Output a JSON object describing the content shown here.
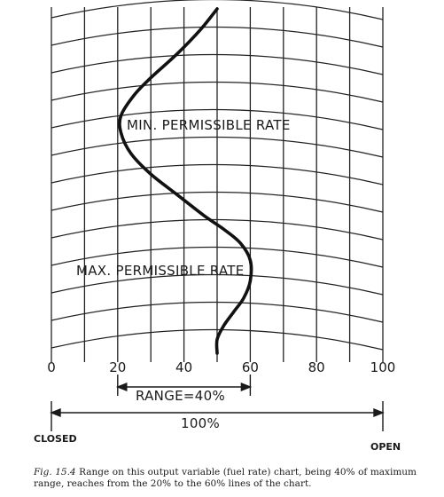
{
  "chart_data": {
    "type": "line",
    "xlim": [
      0,
      100
    ],
    "ylim": [
      0,
      100
    ],
    "x_ticks": [
      "0",
      "20",
      "40",
      "60",
      "80",
      "100"
    ],
    "curve": {
      "x": [
        50,
        45,
        38,
        30,
        25,
        21,
        21,
        24,
        30,
        38,
        46,
        52,
        57,
        60,
        60,
        58,
        55,
        52,
        50,
        50
      ],
      "y": [
        100,
        94,
        87,
        80,
        75,
        69,
        64,
        58,
        52,
        46,
        40,
        36,
        32,
        27,
        21,
        16,
        12,
        8,
        4,
        0
      ]
    },
    "annotations": {
      "min_rate": "MIN. PERMISSIBLE RATE",
      "max_rate": "MAX. PERMISSIBLE RATE",
      "range": "RANGE=40%",
      "full_range": "100%",
      "closed": "CLOSED",
      "open": "OPEN"
    },
    "range_bracket": [
      20,
      60
    ],
    "full_bracket": [
      0,
      100
    ]
  },
  "caption": {
    "prefix": "Fig. 15.4",
    "text": "Range on this output variable (fuel rate) chart, being 40% of maximum range, reaches from the 20% to the 60% lines of the chart."
  }
}
